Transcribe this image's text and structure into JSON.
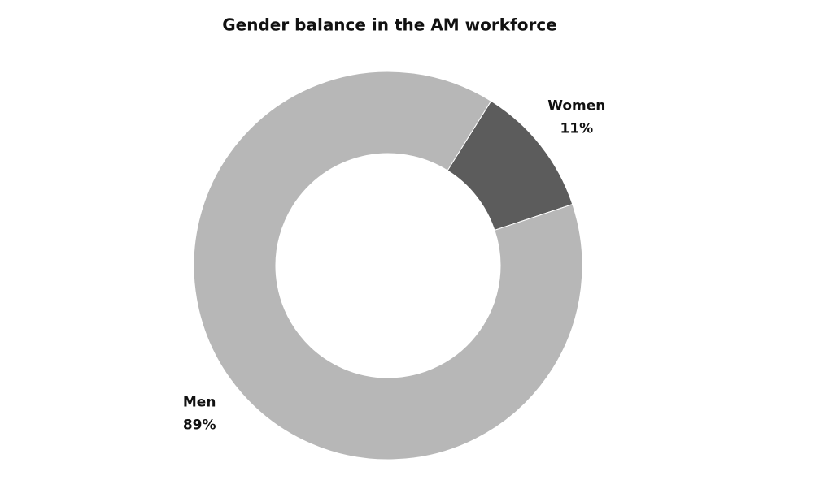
{
  "chart_data": {
    "type": "donut",
    "title": "Gender balance in the AM workforce",
    "categories": [
      "Women",
      "Men"
    ],
    "values": [
      11,
      89
    ],
    "value_labels": [
      "11%",
      "89%"
    ],
    "colors": [
      "#5c5c5c",
      "#b7b7b7"
    ]
  }
}
